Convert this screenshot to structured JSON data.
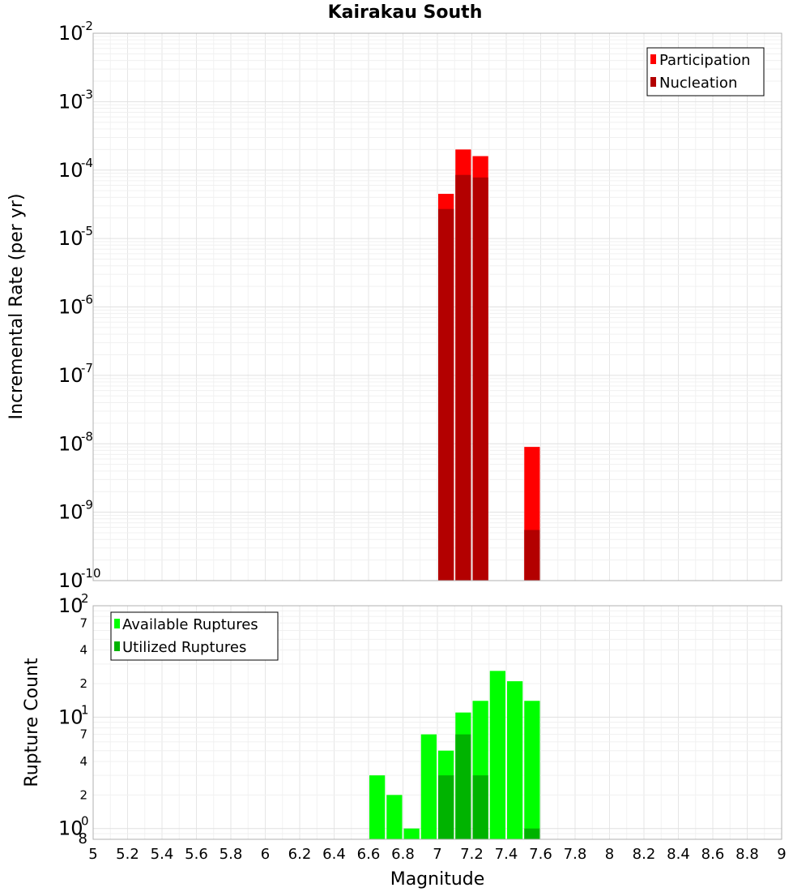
{
  "chart_data": [
    {
      "type": "bar",
      "title": "Kairakau South",
      "ylabel": "Incremental Rate (per yr)",
      "yscale": "log",
      "ylim": [
        1e-10,
        0.01
      ],
      "xlim": [
        5,
        9
      ],
      "y_ticks": [
        "10^-10",
        "10^-9",
        "10^-8",
        "10^-7",
        "10^-6",
        "10^-5",
        "10^-4",
        "10^-3",
        "10^-2"
      ],
      "legend": {
        "placement": "top-right",
        "entries": [
          "Participation",
          "Nucleation"
        ]
      },
      "colors": {
        "Participation": "#ff0000",
        "Nucleation": "#b30000"
      },
      "bar_width": 0.1,
      "grid": true,
      "series": [
        {
          "name": "Participation",
          "x": [
            7.05,
            7.15,
            7.25,
            7.55
          ],
          "values": [
            4.5e-05,
            0.0002,
            0.00016,
            9e-09
          ]
        },
        {
          "name": "Nucleation",
          "x": [
            7.05,
            7.15,
            7.25,
            7.55
          ],
          "values": [
            2.7e-05,
            8.5e-05,
            7.8e-05,
            5.5e-10
          ]
        }
      ]
    },
    {
      "type": "bar",
      "ylabel": "Rupture Count",
      "xlabel": "Magnitude",
      "yscale": "log",
      "ylim": [
        0.8,
        100
      ],
      "xlim": [
        5,
        9
      ],
      "x_ticks": [
        "5",
        "5.2",
        "5.4",
        "5.6",
        "5.8",
        "6",
        "6.2",
        "6.4",
        "6.6",
        "6.8",
        "7",
        "7.2",
        "7.4",
        "7.6",
        "7.8",
        "8",
        "8.2",
        "8.4",
        "8.6",
        "8.8",
        "9"
      ],
      "y_ticks": [
        "10^0",
        "10^1",
        "10^2"
      ],
      "y_minor_ticks": [
        "8",
        "2",
        "4",
        "7",
        "2",
        "4",
        "7"
      ],
      "legend": {
        "placement": "top-left",
        "entries": [
          "Available Ruptures",
          "Utilized Ruptures"
        ]
      },
      "colors": {
        "Available Ruptures": "#00ff00",
        "Utilized Ruptures": "#00b300"
      },
      "bar_width": 0.1,
      "grid": true,
      "series": [
        {
          "name": "Available Ruptures",
          "x": [
            6.65,
            6.75,
            6.85,
            6.95,
            7.05,
            7.15,
            7.25,
            7.35,
            7.45,
            7.55
          ],
          "values": [
            3,
            2,
            1,
            7,
            5,
            11,
            14,
            26,
            21,
            14
          ]
        },
        {
          "name": "Utilized Ruptures",
          "x": [
            7.05,
            7.15,
            7.25,
            7.55
          ],
          "values": [
            3,
            7,
            3,
            1
          ]
        }
      ]
    }
  ]
}
